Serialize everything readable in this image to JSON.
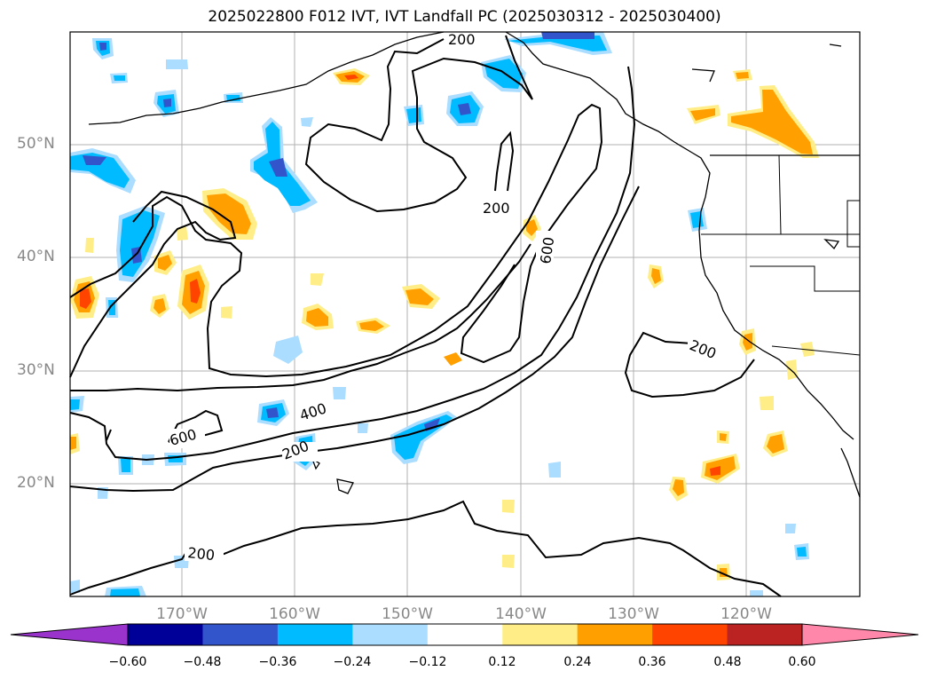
{
  "title": "2025022800 F012 IVT, IVT Landfall PC (2025030312 - 2025030400)",
  "lat_labels": [
    "50°N",
    "40°N",
    "30°N",
    "20°N"
  ],
  "lon_labels": [
    "170°W",
    "160°W",
    "150°W",
    "140°W",
    "130°W",
    "120°W"
  ],
  "contour_labels": {
    "c1": "200",
    "c2": "200",
    "c3": "600",
    "c4": "200",
    "c5": "400",
    "c6": "600",
    "c7": "200",
    "c8": "200"
  },
  "colorbar": {
    "ticks": [
      "−0.60",
      "−0.48",
      "−0.36",
      "−0.24",
      "−0.12",
      "0.12",
      "0.24",
      "0.36",
      "0.48",
      "0.60"
    ],
    "colors": [
      "#9933cc",
      "#000099",
      "#3355cc",
      "#00bbff",
      "#aaddff",
      "#ffffff",
      "#ffee88",
      "#ffa000",
      "#ff4400",
      "#bb2222",
      "#ff88aa"
    ]
  }
}
